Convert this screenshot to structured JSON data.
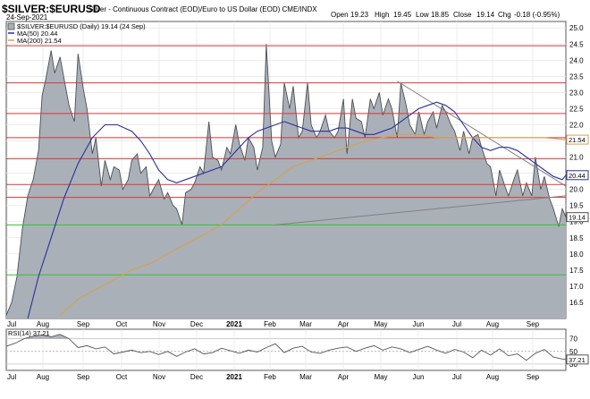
{
  "header": {
    "symbol_title": "$SILVER:$EURUSD",
    "description": "Silver - Continuous Contract (EOD)/Euro to US Dollar (EOD) CME/INDX",
    "date": "24-Sep-2021",
    "open_label": "Open",
    "open_value": "19.23",
    "high_label": "High",
    "high_value": "19.45",
    "low_label": "Low",
    "low_value": "18.85",
    "close_label": "Close",
    "close_value": "19.14",
    "chg_label": "Chg",
    "chg_value": "-0.18 (-0.95%)"
  },
  "colors": {
    "area_fill": "#aab0b8",
    "area_line": "#4b4f55",
    "ma50": "#2b2f9e",
    "ma200": "#d4a24c",
    "red_line": "#d23a3a",
    "green_line": "#33c233",
    "trend_line": "#808080",
    "rsi_line": "#555555",
    "rsi_fill": "#b0b4b8",
    "grid": "#e6e6e6"
  },
  "chart_data": [
    {
      "type": "area",
      "legend": {
        "series_label": "$SILVER:$EURUSD (Daily) 19.14 (24 Sep)",
        "ma50_label": "MA(50) 20.44",
        "ma200_label": "MA(200) 21.54"
      },
      "x_tick_labels": [
        "Jul",
        "Aug",
        "Sep",
        "Oct",
        "Nov",
        "Dec",
        "2021",
        "Feb",
        "Mar",
        "Apr",
        "May",
        "Jun",
        "Jul",
        "Aug",
        "Sep"
      ],
      "y_ticks": [
        16.5,
        17.0,
        17.5,
        18.0,
        18.5,
        19.0,
        19.5,
        20.0,
        20.5,
        21.0,
        21.5,
        22.0,
        22.5,
        23.0,
        23.5,
        24.0,
        24.5,
        25.0
      ],
      "ylim": [
        16.0,
        25.2
      ],
      "price_tags": [
        {
          "label": "21.54",
          "value": 21.54,
          "color": "#d4a24c"
        },
        {
          "label": "20.44",
          "value": 20.44,
          "color": "#2b2f9e"
        },
        {
          "label": "19.14",
          "value": 19.14,
          "color": "#4b4f55"
        }
      ],
      "red_levels": [
        24.45,
        23.3,
        22.35,
        21.6,
        20.95,
        20.15,
        19.75
      ],
      "green_levels": [
        18.9,
        17.35
      ],
      "trend_lines": [
        {
          "x": [
            150,
            312
          ],
          "y": [
            18.9,
            19.8
          ]
        },
        {
          "x": [
            218,
            312
          ],
          "y": [
            23.35,
            20.1
          ]
        }
      ],
      "series": [
        {
          "name": "$SILVER:$EURUSD",
          "x": [
            0,
            3,
            6,
            9,
            12,
            15,
            18,
            20,
            22,
            25,
            27,
            30,
            33,
            35,
            38,
            40,
            43,
            45,
            48,
            50,
            53,
            55,
            58,
            60,
            63,
            65,
            68,
            70,
            73,
            75,
            78,
            80,
            83,
            85,
            88,
            90,
            93,
            95,
            98,
            100,
            103,
            105,
            108,
            110,
            113,
            115,
            118,
            120,
            123,
            125,
            128,
            130,
            133,
            135,
            138,
            140,
            143,
            145,
            148,
            150,
            153,
            155,
            158,
            160,
            163,
            165,
            168,
            170,
            173,
            175,
            178,
            180,
            183,
            185,
            188,
            190,
            193,
            195,
            198,
            200,
            203,
            205,
            208,
            210,
            213,
            215,
            218,
            220,
            223,
            225,
            228,
            230,
            233,
            235,
            238,
            240,
            243,
            245,
            248,
            250,
            253,
            255,
            258,
            260,
            263,
            265,
            268,
            270,
            273,
            275,
            278,
            280,
            283,
            285,
            288,
            290,
            293,
            295,
            298,
            300,
            303,
            305,
            308,
            310,
            312
          ],
          "y": [
            16.1,
            16.5,
            17.3,
            18.8,
            19.8,
            20.3,
            21.2,
            22.9,
            23.4,
            24.3,
            23.6,
            24.1,
            23.2,
            22.6,
            22.1,
            24.2,
            23.1,
            22.5,
            21.1,
            21.6,
            20.1,
            20.9,
            20.3,
            20.7,
            20.6,
            20.0,
            20.3,
            20.9,
            21.1,
            20.5,
            20.7,
            19.8,
            20.1,
            20.3,
            19.7,
            19.9,
            19.5,
            19.4,
            18.9,
            19.9,
            20.0,
            20.2,
            20.7,
            20.5,
            22.1,
            21.0,
            20.9,
            20.6,
            21.3,
            21.1,
            22.0,
            21.4,
            20.9,
            21.6,
            21.3,
            20.6,
            21.3,
            24.5,
            21.5,
            21.0,
            21.4,
            23.3,
            22.5,
            23.2,
            21.6,
            21.8,
            23.3,
            22.0,
            21.6,
            21.8,
            22.3,
            21.8,
            21.6,
            21.8,
            22.8,
            21.1,
            22.8,
            22.2,
            22.1,
            21.6,
            22.8,
            22.5,
            23.0,
            22.3,
            22.8,
            22.5,
            21.6,
            23.3,
            22.6,
            22.0,
            21.7,
            22.4,
            21.7,
            22.1,
            22.4,
            21.9,
            22.6,
            22.4,
            22.0,
            21.8,
            21.2,
            21.8,
            21.1,
            21.6,
            21.7,
            21.3,
            20.8,
            20.7,
            19.8,
            20.6,
            20.1,
            19.8,
            20.3,
            20.6,
            19.8,
            20.2,
            19.8,
            21.0,
            20.0,
            20.4,
            19.7,
            19.4,
            18.85,
            19.4,
            19.14
          ]
        },
        {
          "name": "MA(50)",
          "x": [
            12,
            18,
            25,
            32,
            40,
            48,
            55,
            62,
            70,
            75,
            80,
            85,
            90,
            95,
            100,
            105,
            110,
            115,
            120,
            125,
            130,
            135,
            140,
            145,
            150,
            155,
            160,
            165,
            170,
            175,
            180,
            185,
            190,
            195,
            200,
            205,
            210,
            215,
            220,
            225,
            230,
            235,
            240,
            245,
            250,
            255,
            260,
            265,
            270,
            275,
            280,
            285,
            290,
            295,
            300,
            305,
            310,
            312
          ],
          "y": [
            16.0,
            17.3,
            18.5,
            19.7,
            20.8,
            21.6,
            22.0,
            22.0,
            21.8,
            21.5,
            21.1,
            20.6,
            20.3,
            20.2,
            20.3,
            20.4,
            20.5,
            20.6,
            20.7,
            21.0,
            21.3,
            21.6,
            21.8,
            21.9,
            22.0,
            22.1,
            22.0,
            21.9,
            21.8,
            21.8,
            21.8,
            21.9,
            21.9,
            21.8,
            21.7,
            21.7,
            21.8,
            21.9,
            22.1,
            22.3,
            22.5,
            22.6,
            22.7,
            22.6,
            22.4,
            22.0,
            21.6,
            21.3,
            21.2,
            21.3,
            21.3,
            21.2,
            21.0,
            20.8,
            20.6,
            20.4,
            20.3,
            20.44
          ]
        },
        {
          "name": "MA(200)",
          "x": [
            30,
            40,
            50,
            60,
            70,
            80,
            90,
            100,
            110,
            120,
            130,
            140,
            150,
            160,
            170,
            180,
            190,
            200,
            210,
            220,
            230,
            240,
            250,
            260,
            270,
            280,
            290,
            300,
            310,
            312
          ],
          "y": [
            16.1,
            16.6,
            16.9,
            17.2,
            17.5,
            17.7,
            18.0,
            18.3,
            18.6,
            18.9,
            19.4,
            19.9,
            20.3,
            20.7,
            20.9,
            21.1,
            21.3,
            21.5,
            21.6,
            21.7,
            21.7,
            21.6,
            21.6,
            21.6,
            21.6,
            21.6,
            21.6,
            21.6,
            21.55,
            21.54
          ]
        }
      ]
    },
    {
      "type": "line",
      "legend_label": "RSI(14) 37.21",
      "y_ticks": [
        30,
        50,
        70
      ],
      "ylim": [
        20,
        85
      ],
      "tag": {
        "label": "37.21",
        "value": 37.21
      },
      "series": [
        {
          "name": "RSI(14)",
          "x": [
            0,
            5,
            10,
            15,
            20,
            25,
            30,
            35,
            40,
            45,
            50,
            55,
            60,
            65,
            70,
            75,
            80,
            85,
            90,
            95,
            100,
            105,
            110,
            115,
            120,
            125,
            130,
            135,
            140,
            145,
            150,
            155,
            160,
            165,
            170,
            175,
            180,
            185,
            190,
            195,
            200,
            205,
            210,
            215,
            220,
            225,
            230,
            235,
            240,
            245,
            250,
            255,
            260,
            265,
            270,
            275,
            280,
            285,
            290,
            295,
            300,
            305,
            310,
            312
          ],
          "y": [
            58,
            63,
            70,
            74,
            76,
            73,
            77,
            70,
            56,
            59,
            54,
            57,
            46,
            49,
            52,
            48,
            50,
            45,
            50,
            42,
            49,
            54,
            46,
            48,
            55,
            51,
            47,
            52,
            49,
            56,
            62,
            48,
            55,
            58,
            49,
            47,
            52,
            55,
            57,
            50,
            55,
            59,
            52,
            57,
            54,
            48,
            53,
            58,
            52,
            47,
            53,
            49,
            40,
            52,
            44,
            54,
            43,
            46,
            36,
            47,
            53,
            41,
            38,
            37.21
          ]
        }
      ]
    }
  ]
}
